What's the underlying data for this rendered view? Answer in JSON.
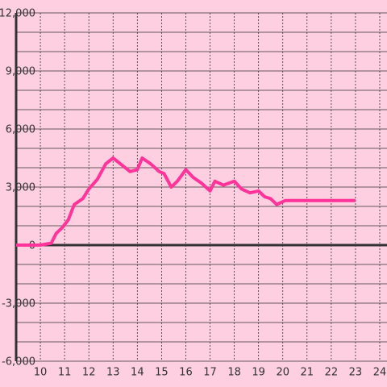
{
  "chart_data": {
    "type": "line",
    "x": [
      9.0,
      10.0,
      10.45,
      10.65,
      10.9,
      11.15,
      11.4,
      11.75,
      12.0,
      12.35,
      12.7,
      13.0,
      13.3,
      13.7,
      14.0,
      14.2,
      14.55,
      14.9,
      15.1,
      15.4,
      15.65,
      16.0,
      16.3,
      16.65,
      17.0,
      17.2,
      17.55,
      18.0,
      18.3,
      18.65,
      19.0,
      19.25,
      19.5,
      19.75,
      20.1,
      20.3,
      23.0
    ],
    "series": [
      {
        "color": "#ff3399",
        "values": [
          0,
          0,
          100,
          600,
          900,
          1300,
          2100,
          2400,
          2900,
          3400,
          4200,
          4500,
          4200,
          3800,
          3900,
          4500,
          4200,
          3800,
          3700,
          3000,
          3300,
          3900,
          3500,
          3200,
          2800,
          3300,
          3100,
          3300,
          2900,
          2700,
          2800,
          2500,
          2400,
          2100,
          2300,
          2300,
          2300
        ]
      }
    ],
    "xlim": [
      9,
      24.3
    ],
    "xticks": [
      10,
      11,
      12,
      13,
      14,
      15,
      16,
      17,
      18,
      19,
      20,
      21,
      22,
      23,
      24
    ],
    "ylim": [
      -6000,
      12000
    ],
    "yticks": [
      {
        "value": -6000,
        "label": "-6,000"
      },
      {
        "value": -3000,
        "label": "-3,000"
      },
      0,
      {
        "value": 3000,
        "label": "3,000"
      },
      {
        "value": 6000,
        "label": "6,000"
      },
      {
        "value": 9000,
        "label": "9,000"
      },
      {
        "value": 12000,
        "label": "12,000"
      }
    ],
    "y_minor_ticks": [
      -5000,
      -4000,
      -2000,
      -1000,
      1000,
      2000,
      4000,
      5000,
      7000,
      8000,
      10000,
      11000
    ],
    "grid": true
  }
}
